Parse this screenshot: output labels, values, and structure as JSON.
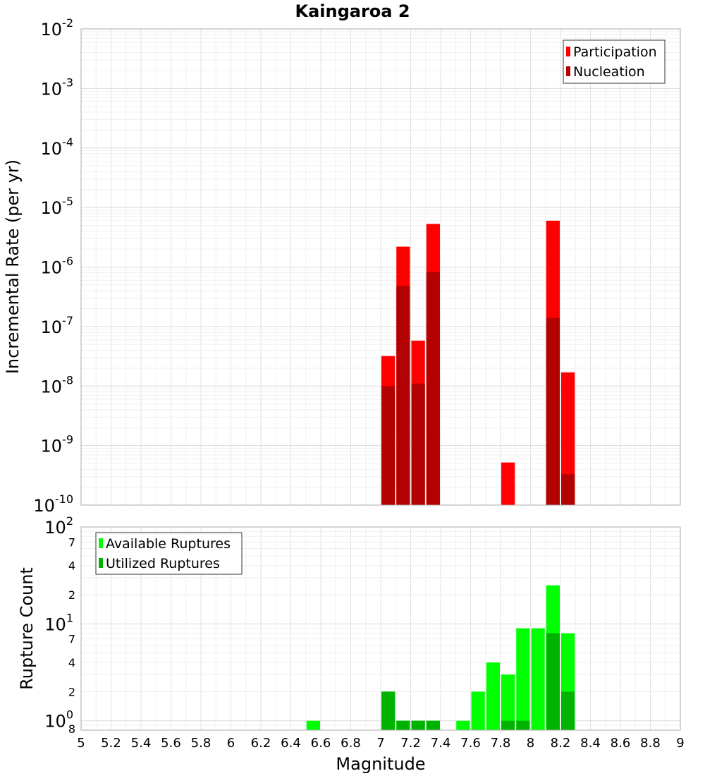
{
  "chart_data": [
    {
      "type": "bar",
      "title": "Kaingaroa 2",
      "xlabel": "",
      "ylabel": "Incremental Rate (per yr)",
      "yscale": "log",
      "ylim": [
        1e-10,
        0.01
      ],
      "xlim": [
        5,
        9
      ],
      "bar_width": 0.1,
      "grid": true,
      "legend_position": "top-right",
      "y_ticks": [
        {
          "base": "10",
          "exp": "-10",
          "value": 1e-10
        },
        {
          "base": "10",
          "exp": "-9",
          "value": 1e-09
        },
        {
          "base": "10",
          "exp": "-8",
          "value": 1e-08
        },
        {
          "base": "10",
          "exp": "-7",
          "value": 1e-07
        },
        {
          "base": "10",
          "exp": "-6",
          "value": 1e-06
        },
        {
          "base": "10",
          "exp": "-5",
          "value": 1e-05
        },
        {
          "base": "10",
          "exp": "-4",
          "value": 0.0001
        },
        {
          "base": "10",
          "exp": "-3",
          "value": 0.001
        },
        {
          "base": "10",
          "exp": "-2",
          "value": 0.01
        }
      ],
      "series": [
        {
          "name": "Participation",
          "color": "#ff0000",
          "x": [
            7.05,
            7.15,
            7.25,
            7.35,
            7.85,
            8.15,
            8.25
          ],
          "values": [
            3.2e-08,
            2.2e-06,
            5.8e-08,
            5.3e-06,
            5.2e-10,
            6e-06,
            1.7e-08
          ]
        },
        {
          "name": "Nucleation",
          "color": "#b30000",
          "x": [
            7.05,
            7.15,
            7.25,
            7.35,
            8.15,
            8.25
          ],
          "values": [
            1e-08,
            4.8e-07,
            1.1e-08,
            8.2e-07,
            1.4e-07,
            3.3e-10
          ]
        }
      ]
    },
    {
      "type": "bar",
      "title": "",
      "xlabel": "Magnitude",
      "ylabel": "Rupture Count",
      "yscale": "log",
      "ylim": [
        0.8,
        100
      ],
      "xlim": [
        5,
        9
      ],
      "bar_width": 0.1,
      "grid": true,
      "legend_position": "top-left",
      "x_ticks": [
        "5",
        "5.2",
        "5.4",
        "5.6",
        "5.8",
        "6",
        "6.2",
        "6.4",
        "6.6",
        "6.8",
        "7",
        "7.2",
        "7.4",
        "7.6",
        "7.8",
        "8",
        "8.2",
        "8.4",
        "8.6",
        "8.8",
        "9"
      ],
      "y_ticks": [
        {
          "base": "10",
          "exp": "0",
          "value": 1
        },
        {
          "base": "10",
          "exp": "1",
          "value": 10
        },
        {
          "base": "10",
          "exp": "2",
          "value": 100
        }
      ],
      "y_minor_labels": [
        {
          "label": "8",
          "value": 0.8
        },
        {
          "label": "2",
          "value": 2
        },
        {
          "label": "4",
          "value": 4
        },
        {
          "label": "7",
          "value": 7
        },
        {
          "label": "2",
          "value": 20
        },
        {
          "label": "4",
          "value": 40
        },
        {
          "label": "7",
          "value": 70
        }
      ],
      "series": [
        {
          "name": "Available Ruptures",
          "color": "#00ff00",
          "x": [
            6.55,
            7.05,
            7.15,
            7.25,
            7.35,
            7.55,
            7.65,
            7.75,
            7.85,
            7.95,
            8.05,
            8.15,
            8.25
          ],
          "values": [
            1,
            2,
            1,
            1,
            1,
            1,
            2,
            4,
            3,
            9,
            9,
            25,
            8
          ]
        },
        {
          "name": "Utilized Ruptures",
          "color": "#00b300",
          "x": [
            7.05,
            7.15,
            7.25,
            7.35,
            7.85,
            7.95,
            8.15,
            8.25
          ],
          "values": [
            2,
            1,
            1,
            1,
            1,
            1,
            8,
            2
          ]
        }
      ]
    }
  ]
}
